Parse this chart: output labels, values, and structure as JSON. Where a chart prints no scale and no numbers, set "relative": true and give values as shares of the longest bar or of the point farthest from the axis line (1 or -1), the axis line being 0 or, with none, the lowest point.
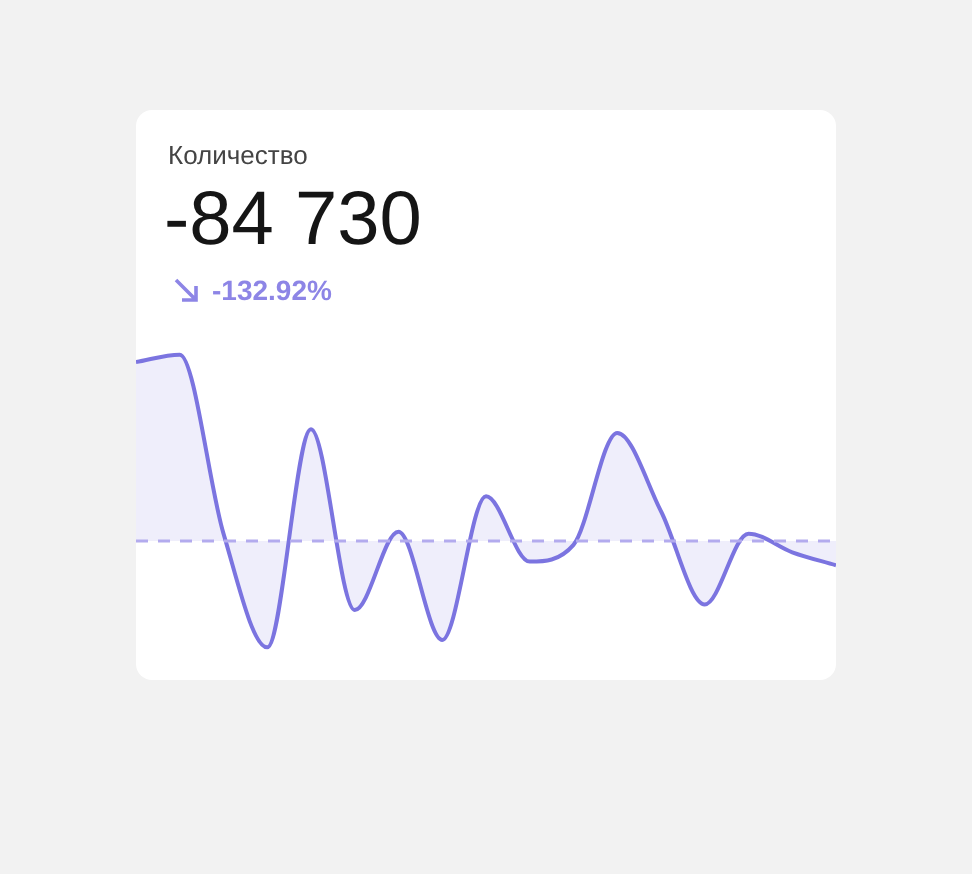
{
  "chart_data": {
    "type": "area",
    "title": "Количество",
    "subtitle": "-84 730",
    "annotations": [
      "-132.92%"
    ],
    "relative": true,
    "marker": "none",
    "categories": [
      null,
      null,
      null,
      null,
      null,
      null,
      null,
      null,
      null,
      null,
      null,
      null,
      null,
      null,
      null,
      null,
      null
    ],
    "series": [
      {
        "color": "#7b74e0",
        "values": [
          0.96,
          1.0,
          0.04,
          -0.57,
          0.6,
          -0.37,
          0.05,
          -0.53,
          0.24,
          -0.11,
          -0.02,
          0.58,
          0.16,
          -0.34,
          0.04,
          -0.06,
          -0.13
        ]
      }
    ],
    "ref_lines": [
      {
        "axis": "y",
        "value": 0,
        "color": "#b3abee",
        "line_style": "dashed"
      }
    ]
  }
}
